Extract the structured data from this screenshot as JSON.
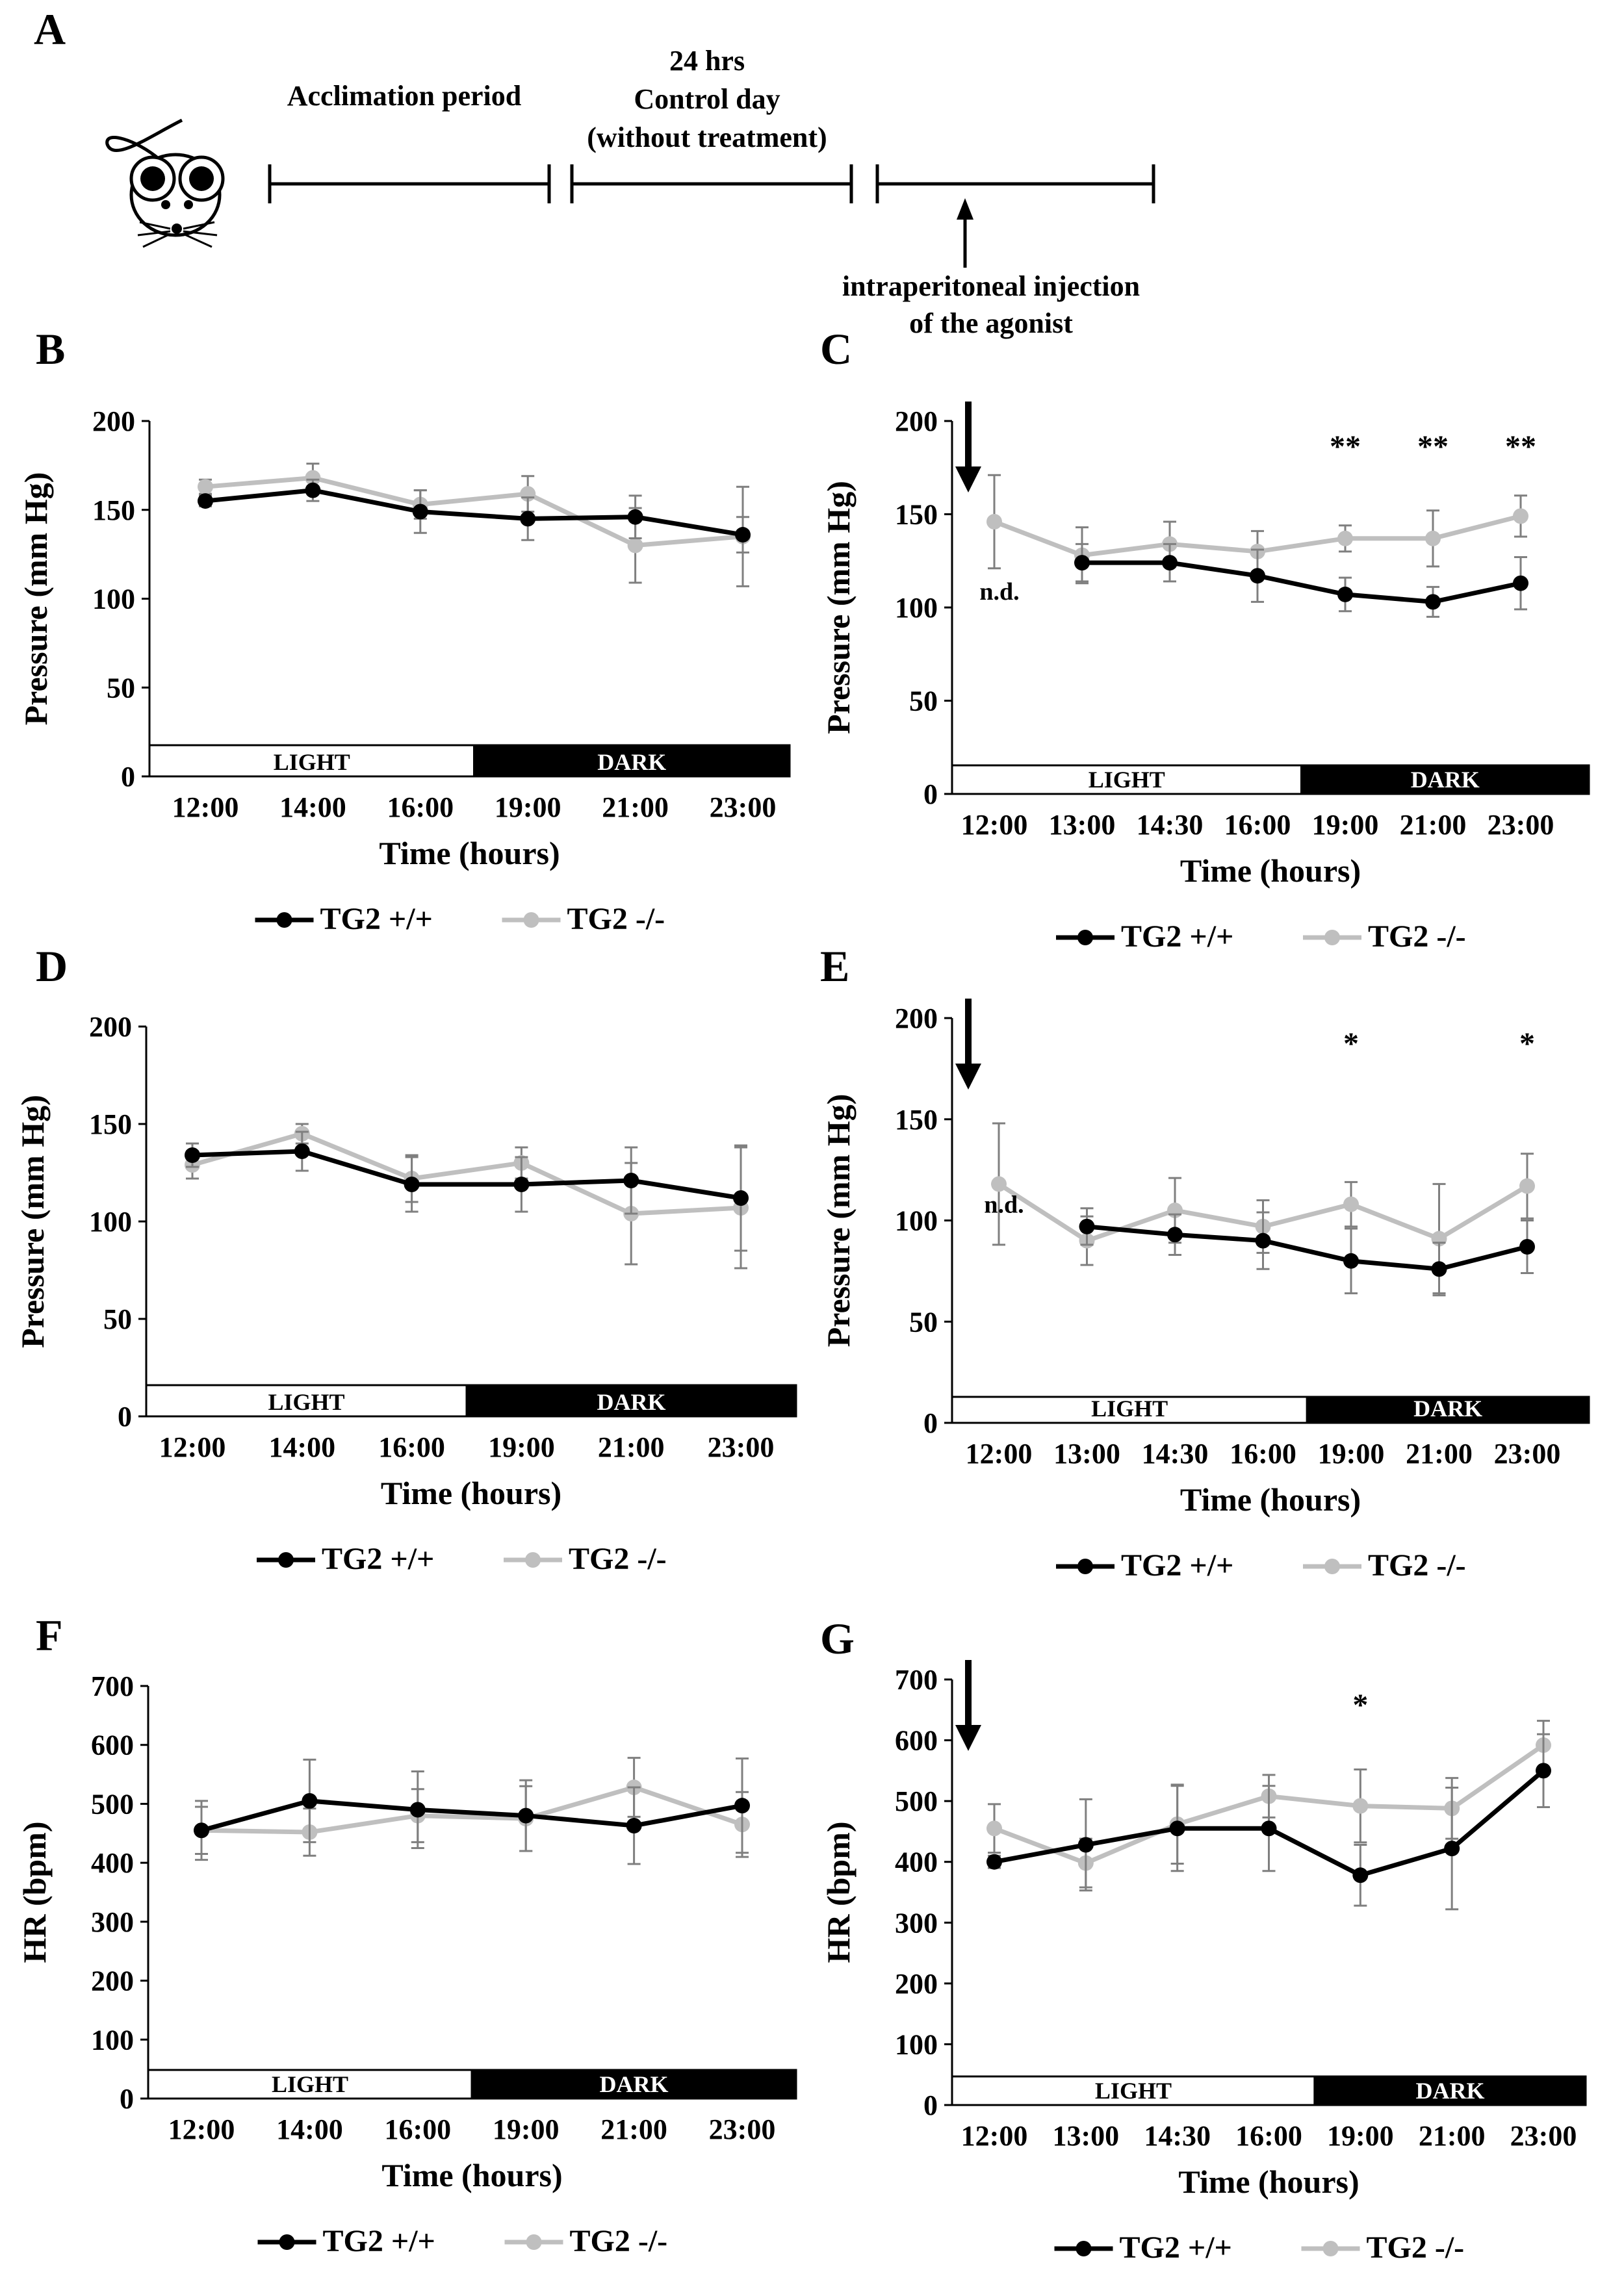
{
  "panel_a": {
    "label": "A",
    "acclimation": "Acclimation period",
    "control_line1": "24 hrs",
    "control_line2": "Control day",
    "control_line3": "(without treatment)",
    "injection_line1": "intraperitoneal injection",
    "injection_line2": "of the agonist"
  },
  "colors": {
    "tg2_wt": "#000000",
    "tg2_ko": "#bfbfbf",
    "error": "#7f7f7f"
  },
  "chart_data": [
    {
      "panel": "B",
      "type": "line",
      "categories": [
        "12:00",
        "14:00",
        "16:00",
        "19:00",
        "21:00",
        "23:00"
      ],
      "ylabel": "Pressure (mm Hg)",
      "xlabel": "Time (hours)",
      "ylim": [
        0,
        200
      ],
      "yticks": [
        0,
        50,
        100,
        150,
        200
      ],
      "light_label": "LIGHT",
      "dark_label": "DARK",
      "light_count": 3,
      "series": [
        {
          "name": "TG2 +/+",
          "values": [
            155,
            161,
            149,
            145,
            146,
            136
          ],
          "errors": [
            3,
            6,
            12,
            12,
            12,
            10
          ]
        },
        {
          "name": "TG2 -/-",
          "values": [
            163,
            168,
            153,
            159,
            130,
            135
          ],
          "errors": [
            4,
            8,
            8,
            10,
            21,
            28
          ]
        }
      ],
      "annotations": [],
      "nd_index": null,
      "arrow": false
    },
    {
      "panel": "C",
      "type": "line",
      "categories": [
        "12:00",
        "13:00",
        "14:30",
        "16:00",
        "19:00",
        "21:00",
        "23:00"
      ],
      "ylabel": "Pressure (mm Hg)",
      "xlabel": "Time (hours)",
      "ylim": [
        0,
        200
      ],
      "yticks": [
        0,
        50,
        100,
        150,
        200
      ],
      "light_label": "LIGHT",
      "dark_label": "DARK",
      "light_count": 4,
      "series": [
        {
          "name": "TG2 +/+",
          "values": [
            null,
            124,
            124,
            117,
            107,
            103,
            113
          ],
          "errors": [
            0,
            10,
            10,
            14,
            9,
            8,
            14
          ]
        },
        {
          "name": "TG2 -/-",
          "values": [
            146,
            128,
            134,
            130,
            137,
            137,
            149
          ],
          "errors": [
            25,
            15,
            12,
            11,
            7,
            15,
            11
          ]
        }
      ],
      "annotations": [
        {
          "index": 4,
          "text": "**"
        },
        {
          "index": 5,
          "text": "**"
        },
        {
          "index": 6,
          "text": "**"
        }
      ],
      "nd_index": 0,
      "nd_text": "n.d.",
      "arrow": true
    },
    {
      "panel": "D",
      "type": "line",
      "categories": [
        "12:00",
        "14:00",
        "16:00",
        "19:00",
        "21:00",
        "23:00"
      ],
      "ylabel": "Pressure (mm Hg)",
      "xlabel": "Time (hours)",
      "ylim": [
        0,
        200
      ],
      "yticks": [
        0,
        50,
        100,
        150,
        200
      ],
      "light_label": "LIGHT",
      "dark_label": "DARK",
      "light_count": 3,
      "series": [
        {
          "name": "TG2 +/+",
          "values": [
            134,
            136,
            119,
            119,
            121,
            112
          ],
          "errors": [
            6,
            10,
            14,
            14,
            17,
            27
          ]
        },
        {
          "name": "TG2 -/-",
          "values": [
            129,
            145,
            122,
            130,
            104,
            107
          ],
          "errors": [
            7,
            5,
            12,
            8,
            26,
            31
          ]
        }
      ],
      "annotations": [],
      "nd_index": null,
      "arrow": false
    },
    {
      "panel": "E",
      "type": "line",
      "categories": [
        "12:00",
        "13:00",
        "14:30",
        "16:00",
        "19:00",
        "21:00",
        "23:00"
      ],
      "ylabel": "Pressure (mm Hg)",
      "xlabel": "Time (hours)",
      "ylim": [
        0,
        200
      ],
      "yticks": [
        0,
        50,
        100,
        150,
        200
      ],
      "light_label": "LIGHT",
      "dark_label": "DARK",
      "light_count": 4,
      "series": [
        {
          "name": "TG2 +/+",
          "values": [
            null,
            97,
            93,
            90,
            80,
            76,
            87
          ],
          "errors": [
            0,
            9,
            10,
            14,
            16,
            13,
            13
          ]
        },
        {
          "name": "TG2 -/-",
          "values": [
            118,
            90,
            105,
            97,
            108,
            91,
            117
          ],
          "errors": [
            30,
            12,
            16,
            13,
            11,
            27,
            16
          ]
        }
      ],
      "annotations": [
        {
          "index": 4,
          "text": "*"
        },
        {
          "index": 6,
          "text": "*"
        }
      ],
      "nd_index": 0,
      "nd_text": "n.d.",
      "arrow": true
    },
    {
      "panel": "F",
      "type": "line",
      "categories": [
        "12:00",
        "14:00",
        "16:00",
        "19:00",
        "21:00",
        "23:00"
      ],
      "ylabel": "HR (bpm)",
      "xlabel": "Time (hours)",
      "ylim": [
        0,
        700
      ],
      "yticks": [
        0,
        100,
        200,
        300,
        400,
        500,
        600,
        700
      ],
      "light_label": "LIGHT",
      "dark_label": "DARK",
      "light_count": 3,
      "series": [
        {
          "name": "TG2 +/+",
          "values": [
            455,
            505,
            490,
            480,
            463,
            497
          ],
          "errors": [
            40,
            70,
            65,
            60,
            65,
            80
          ]
        },
        {
          "name": "TG2 -/-",
          "values": [
            455,
            452,
            480,
            475,
            528,
            465
          ],
          "errors": [
            50,
            40,
            45,
            55,
            50,
            55
          ]
        }
      ],
      "annotations": [],
      "nd_index": null,
      "arrow": false
    },
    {
      "panel": "G",
      "type": "line",
      "categories": [
        "12:00",
        "13:00",
        "14:30",
        "16:00",
        "19:00",
        "21:00",
        "23:00"
      ],
      "ylabel": "HR (bpm)",
      "xlabel": "Time (hours)",
      "ylim": [
        0,
        700
      ],
      "yticks": [
        0,
        100,
        200,
        300,
        400,
        500,
        600,
        700
      ],
      "light_label": "LIGHT",
      "dark_label": "DARK",
      "light_count": 4,
      "series": [
        {
          "name": "TG2 +/+",
          "values": [
            400,
            428,
            455,
            455,
            378,
            422,
            550
          ],
          "errors": [
            10,
            75,
            70,
            70,
            50,
            100,
            60
          ]
        },
        {
          "name": "TG2 -/-",
          "values": [
            455,
            398,
            462,
            508,
            492,
            488,
            592
          ],
          "errors": [
            40,
            40,
            65,
            35,
            60,
            50,
            40
          ]
        }
      ],
      "annotations": [
        {
          "index": 4,
          "text": "*"
        }
      ],
      "nd_index": null,
      "arrow": true
    }
  ]
}
